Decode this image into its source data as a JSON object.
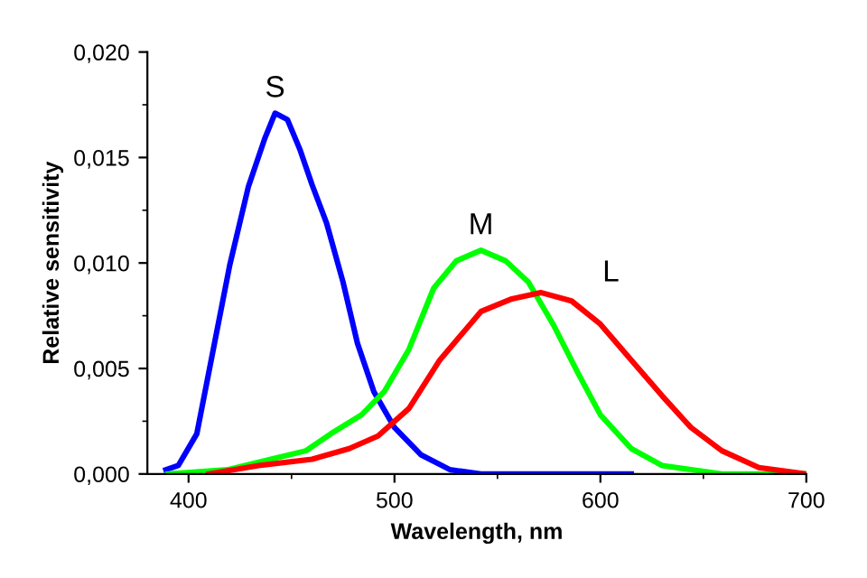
{
  "chart_data": {
    "type": "line",
    "xlabel": "Wavelength, nm",
    "ylabel": "Relative sensitivity",
    "xlim": [
      380,
      700
    ],
    "xticks": [
      400,
      500,
      600,
      700
    ],
    "ylim": [
      0,
      0.02
    ],
    "yticks": [
      {
        "value": 0,
        "label": "0,000"
      },
      {
        "value": 0.005,
        "label": "0,005"
      },
      {
        "value": 0.01,
        "label": "0,010"
      },
      {
        "value": 0.015,
        "label": "0,015"
      },
      {
        "value": 0.02,
        "label": "0,020"
      }
    ],
    "grid": false,
    "legend": false,
    "marker": "none",
    "line_style": "solid",
    "series": [
      {
        "name": "S",
        "color": "#0000ff",
        "x": [
          389,
          395,
          404,
          411,
          420,
          429,
          437,
          442,
          448,
          454,
          460,
          467,
          475,
          482,
          490,
          500,
          513,
          527,
          542,
          615
        ],
        "values": [
          0.0002,
          0.0004,
          0.0019,
          0.0054,
          0.0099,
          0.0136,
          0.0159,
          0.0171,
          0.0168,
          0.0154,
          0.0137,
          0.0119,
          0.0091,
          0.0062,
          0.0039,
          0.0022,
          0.0009,
          0.0002,
          0.0,
          0.0
        ]
      },
      {
        "name": "M",
        "color": "#00ff00",
        "x": [
          390,
          419,
          440,
          457,
          469,
          484,
          495,
          507,
          519,
          530,
          542,
          554,
          565,
          577,
          589,
          600,
          615,
          630,
          659,
          700
        ],
        "values": [
          0.0,
          0.0002,
          0.0007,
          0.0011,
          0.0019,
          0.0028,
          0.0039,
          0.0059,
          0.0088,
          0.0101,
          0.0106,
          0.0101,
          0.0091,
          0.0071,
          0.0048,
          0.0028,
          0.0012,
          0.0004,
          0.0,
          0.0
        ]
      },
      {
        "name": "L",
        "color": "#ff0000",
        "x": [
          410,
          434,
          460,
          478,
          492,
          507,
          522,
          542,
          557,
          571,
          586,
          600,
          615,
          630,
          644,
          659,
          677,
          700
        ],
        "values": [
          0.0,
          0.0004,
          0.0007,
          0.0012,
          0.0018,
          0.0031,
          0.0054,
          0.0077,
          0.0083,
          0.0086,
          0.0082,
          0.0071,
          0.0054,
          0.0037,
          0.0022,
          0.0011,
          0.0003,
          0.0
        ]
      }
    ]
  }
}
